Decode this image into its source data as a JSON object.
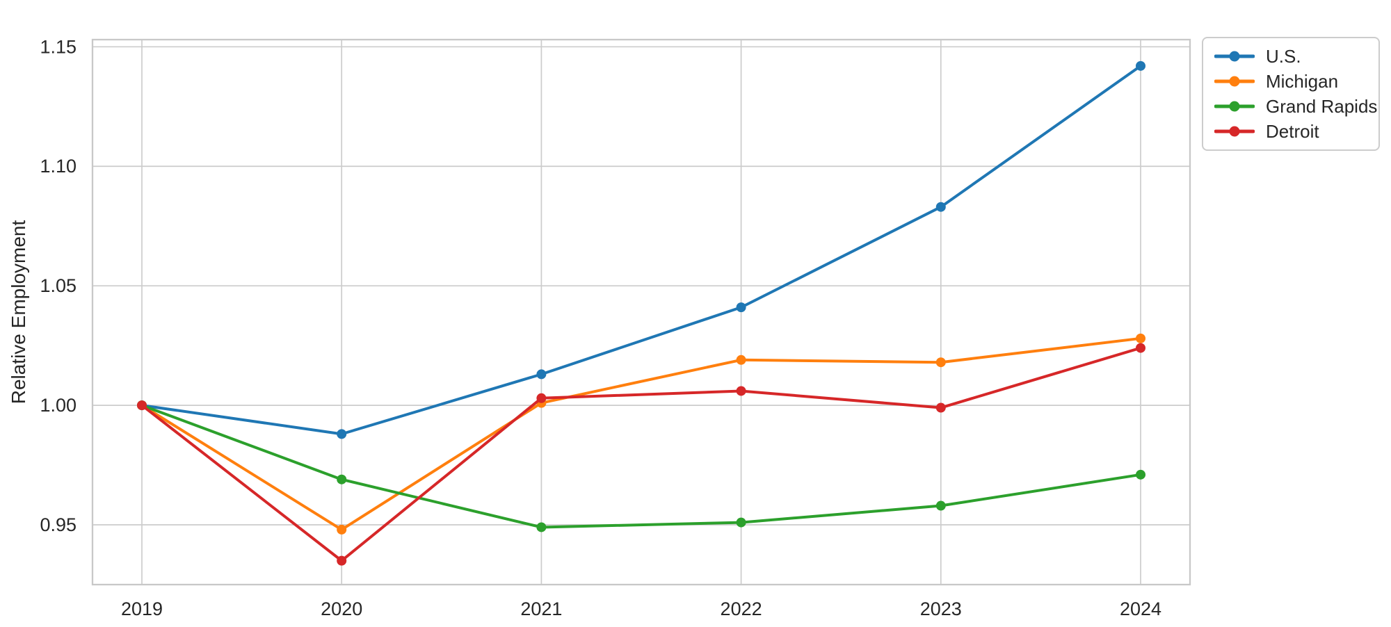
{
  "chart_data": {
    "type": "line",
    "title": "",
    "xlabel": "",
    "ylabel": "Relative Employment",
    "x": [
      2019,
      2020,
      2021,
      2022,
      2023,
      2024
    ],
    "x_tick_labels": [
      "2019",
      "2020",
      "2021",
      "2022",
      "2023",
      "2024"
    ],
    "y_ticks": [
      0.95,
      1.0,
      1.05,
      1.1,
      1.15
    ],
    "y_tick_labels": [
      "0.95",
      "1.00",
      "1.05",
      "1.10",
      "1.15"
    ],
    "ylim": [
      0.925,
      1.153
    ],
    "grid": true,
    "legend_position": "outside-upper-right",
    "marker": "circle",
    "series": [
      {
        "name": "U.S.",
        "color": "#1f77b4",
        "values": [
          1.0,
          0.988,
          1.013,
          1.041,
          1.083,
          1.142
        ]
      },
      {
        "name": "Michigan",
        "color": "#ff7f0e",
        "values": [
          1.0,
          0.948,
          1.001,
          1.019,
          1.018,
          1.028
        ]
      },
      {
        "name": "Grand Rapids",
        "color": "#2ca02c",
        "values": [
          1.0,
          0.969,
          0.949,
          0.951,
          0.958,
          0.971
        ]
      },
      {
        "name": "Detroit",
        "color": "#d62728",
        "values": [
          1.0,
          0.935,
          1.003,
          1.006,
          0.999,
          1.024
        ]
      }
    ],
    "styles": {
      "background": "#ffffff",
      "grid_color": "#cccccc",
      "spine_color": "#c8c8c8",
      "text_color": "#262626"
    }
  }
}
